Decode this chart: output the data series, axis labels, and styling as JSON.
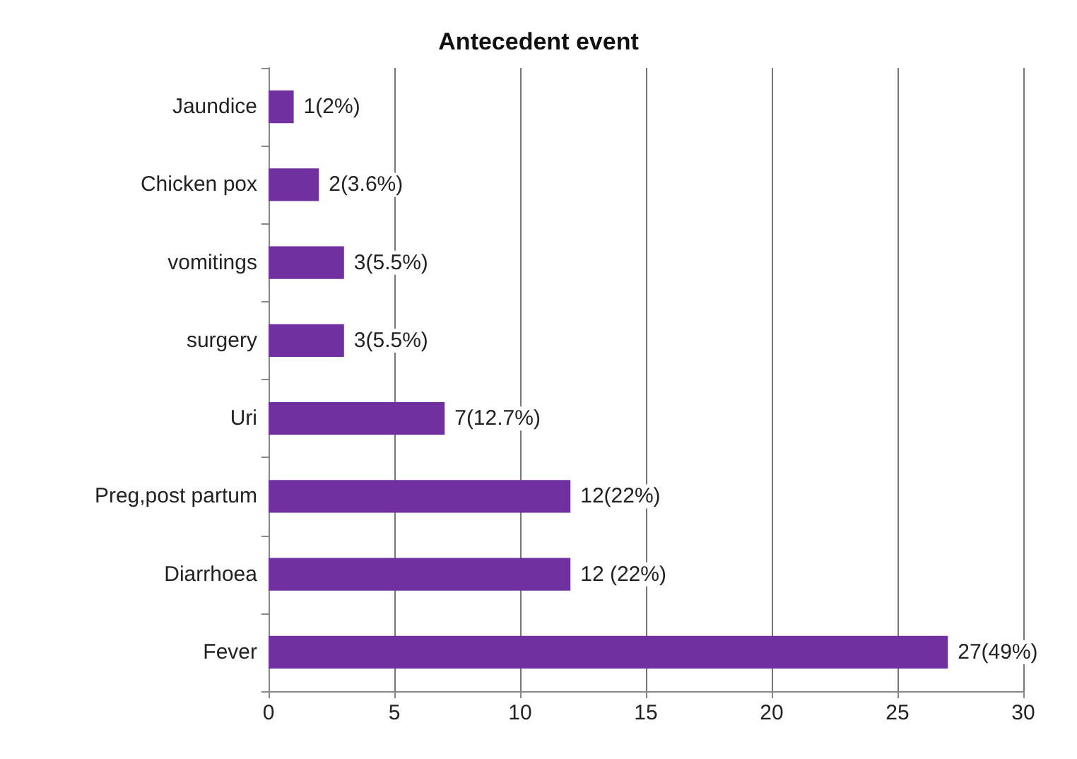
{
  "chart_data": {
    "type": "bar",
    "orientation": "horizontal",
    "title": "Antecedent event",
    "categories": [
      "Jaundice",
      "Chicken pox",
      "vomitings",
      "surgery",
      "Uri",
      "Preg,post partum",
      "Diarrhoea",
      "Fever"
    ],
    "values": [
      1,
      2,
      3,
      3,
      7,
      12,
      12,
      27
    ],
    "value_labels": [
      "1(2%)",
      "2(3.6%)",
      "3(5.5%)",
      "3(5.5%)",
      "7(12.7%)",
      "12(22%)",
      "12 (22%)",
      "27(49%)"
    ],
    "color": "#7030a0",
    "xlim": [
      0,
      30
    ],
    "xticks": [
      0,
      5,
      10,
      15,
      20,
      25,
      30
    ],
    "grid": "x"
  }
}
